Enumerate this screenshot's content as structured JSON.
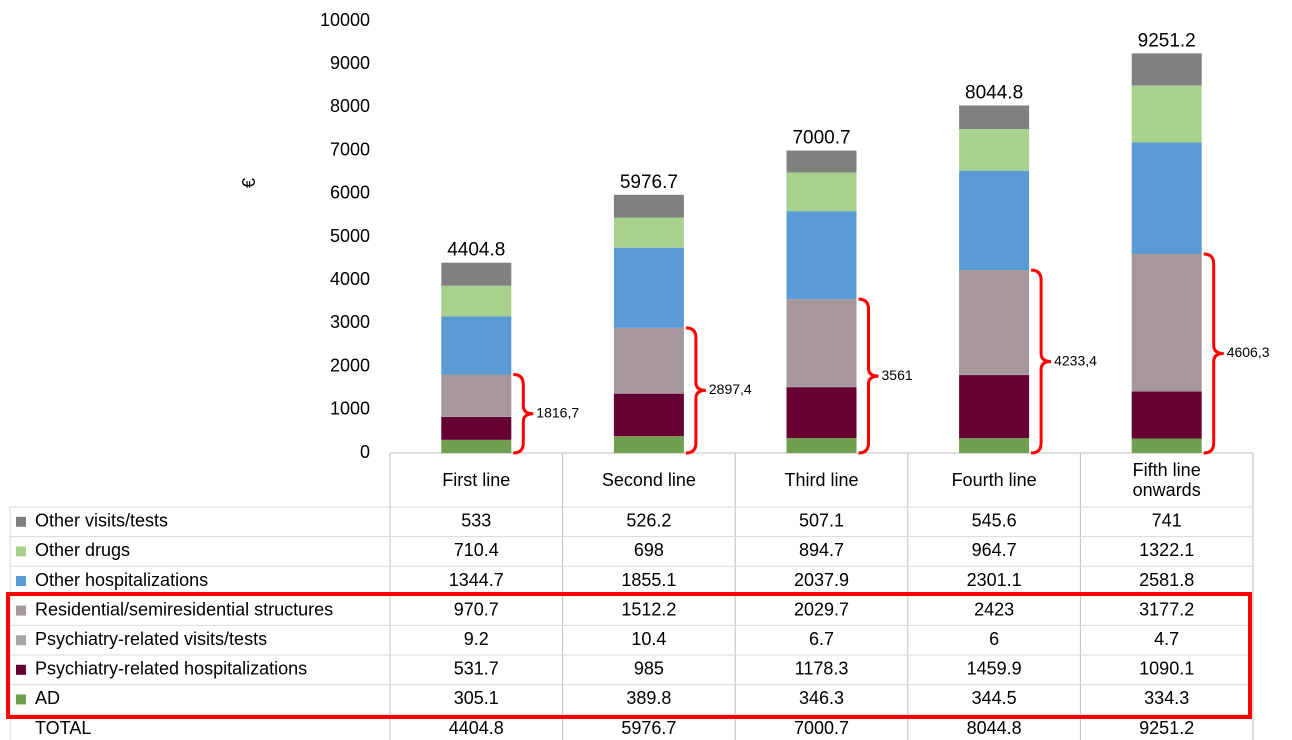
{
  "chart_data": {
    "type": "stacked_bar_table",
    "y_label": "€",
    "categories": [
      "First line",
      "Second line",
      "Third line",
      "Fourth line",
      "Fifth line onwards"
    ],
    "series": [
      {
        "name": "Other visits/tests",
        "color": "#808080",
        "values": [
          533,
          526.2,
          507.1,
          545.6,
          741
        ]
      },
      {
        "name": "Other drugs",
        "color": "#a9d18e",
        "values": [
          710.4,
          698,
          894.7,
          964.7,
          1322.1
        ]
      },
      {
        "name": "Other hospitalizations",
        "color": "#5b9bd5",
        "values": [
          1344.7,
          1855.1,
          2037.9,
          2301.1,
          2581.8
        ]
      },
      {
        "name": "Residential/semiresidential structures",
        "color": "#a5979a",
        "values": [
          970.7,
          1512.2,
          2029.7,
          2423,
          3177.2
        ]
      },
      {
        "name": "Psychiatry-related visits/tests",
        "color": "#a6a6a6",
        "values": [
          9.2,
          10.4,
          6.7,
          6,
          4.7
        ]
      },
      {
        "name": "Psychiatry-related hospitalizations",
        "color": "#660033",
        "values": [
          531.7,
          985,
          1178.3,
          1459.9,
          1090.1
        ]
      },
      {
        "name": "AD",
        "color": "#70a04f",
        "values": [
          305.1,
          389.8,
          346.3,
          344.5,
          334.3
        ]
      }
    ],
    "total_name": "TOTAL",
    "totals": [
      4404.8,
      5976.7,
      7000.7,
      8044.8,
      9251.2
    ],
    "brace_values": [
      1816.7,
      2897.4,
      3561,
      4233.4,
      4606.3
    ],
    "brace_value_labels": [
      "1816,7",
      "2897,4",
      "3561",
      "4233,4",
      "4606,3"
    ],
    "brace_color": "#ff0000",
    "ylim": [
      0,
      10000
    ],
    "yticks": [
      0,
      1000,
      2000,
      3000,
      4000,
      5000,
      6000,
      7000,
      8000,
      9000,
      10000
    ]
  }
}
